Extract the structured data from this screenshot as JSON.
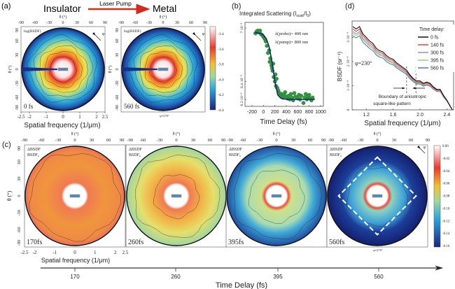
{
  "panel_a": {
    "label": "(a)",
    "insulator": "Insulator",
    "metal": "Metal",
    "pump": "Laser Pump",
    "arrow_color": "#d42a1e",
    "theta_label": "θ (°)",
    "theta_ticks": [
      "-90",
      "-60",
      "-30",
      "0",
      "30",
      "60",
      "90"
    ],
    "theta_ticks_left": [
      "90",
      "60",
      "30",
      "0",
      "-30",
      "-60",
      "-90"
    ],
    "map_label": "log(BSDF)",
    "maps": [
      {
        "time": "0 fs"
      },
      {
        "time": "560 fs"
      }
    ],
    "phi_symbol": "φ",
    "phi_bottom": "φ=270°",
    "freq_ticks": [
      "-2.5",
      "-2",
      "-1",
      "0",
      "1",
      "2",
      "2.5"
    ],
    "xlabel": "Spatial frequency (1/μm)",
    "colorbar_ticks": [
      "-3.4",
      "-3.6",
      "-3.8",
      "-4.0",
      "-4.2",
      "-4.4"
    ]
  },
  "panel_c": {
    "label": "(c)",
    "theta_label": "θ (°)",
    "theta_ticks": [
      "-90",
      "-60",
      "-30",
      "0",
      "30",
      "60",
      "90"
    ],
    "theta_ticks_left": [
      "90",
      "60",
      "30",
      "0",
      "-30",
      "-60",
      "-90"
    ],
    "map_label_num": "ΔBSDF",
    "map_label_den": "BSDF₀",
    "maps": [
      {
        "time": "170fs"
      },
      {
        "time": "260fs"
      },
      {
        "time": "395fs"
      },
      {
        "time": "560fs"
      }
    ],
    "phi_symbol": "φ",
    "phi_bottom": "φ=270°",
    "freq_ticks": [
      "-2.5",
      "-2",
      "-1",
      "0",
      "1",
      "2",
      "2.5"
    ],
    "xlabel": "Spatial frequency (1/μm)",
    "colorbar_ticks": [
      "0.00",
      "-0.02",
      "-0.04",
      "-0.06",
      "-0.08",
      "-0.10",
      "-0.12",
      "-0.14",
      "-0.16"
    ],
    "time_axis_ticks": [
      "170",
      "260",
      "395",
      "560"
    ],
    "time_axis_label": "Time Delay (fs)"
  },
  "chart_data": [
    {
      "id": "b",
      "type": "scatter",
      "panel_label": "(b)",
      "title": "Integrated Scattering (I",
      "title_sub": "scatt",
      "title_mid": "/I",
      "title_sub2": "0",
      "title_end": ")",
      "xlabel": "Time Delay (fs)",
      "xlim": [
        -200,
        1000
      ],
      "ylim": [
        0.00062,
        0.0007
      ],
      "x_ticks": [
        "-200",
        "0",
        "200",
        "400",
        "600",
        "800",
        "1000"
      ],
      "y_ticks": [
        {
          "value": 0.0007,
          "label": "7·10⁻⁴"
        },
        {
          "value": 0.00064,
          "label": "6.4·10⁻⁴"
        },
        {
          "value": 0.00062,
          "label": "6.2·10⁻⁴"
        }
      ],
      "annotations": [
        "λ(probe)= 400 nm",
        "λ(pump)= 800 nm"
      ],
      "point_color": "#2f9a3a",
      "fit_color": "#1a237e",
      "points": {
        "x": [
          -140,
          -120,
          -100,
          -80,
          -60,
          -40,
          -20,
          0,
          20,
          40,
          60,
          80,
          100,
          110,
          120,
          140,
          150,
          160,
          170,
          180,
          200,
          210,
          220,
          230,
          240,
          260,
          280,
          300,
          320,
          340,
          360,
          380,
          400,
          420,
          440,
          460,
          480,
          500,
          520,
          540,
          560,
          600,
          620,
          640,
          660,
          700,
          720,
          740,
          760,
          780,
          800,
          820,
          840,
          860
        ],
        "y": [
          0.000694,
          0.000696,
          0.000697,
          0.000695,
          0.000697,
          0.000693,
          0.000692,
          0.00069,
          0.000688,
          0.000685,
          0.00068,
          0.000672,
          0.000675,
          0.000662,
          0.000666,
          0.000658,
          0.000655,
          0.000652,
          0.00066,
          0.000645,
          0.00064,
          0.000648,
          0.000635,
          0.000643,
          0.000633,
          0.00063,
          0.000627,
          0.000624,
          0.000626,
          0.000622,
          0.000625,
          0.000628,
          0.000623,
          0.000621,
          0.000624,
          0.00062,
          0.000626,
          0.000622,
          0.000619,
          0.000627,
          0.000623,
          0.000621,
          0.000625,
          0.00062,
          0.000624,
          0.000616,
          0.000622,
          0.000626,
          0.00062,
          0.000623,
          0.000625,
          0.000621,
          0.000619,
          0.000622
        ]
      },
      "fit": {
        "x": [
          -150,
          -100,
          -50,
          0,
          50,
          100,
          150,
          200,
          250,
          300,
          350,
          400,
          450,
          500,
          600,
          700,
          800,
          900
        ],
        "y": [
          0.0006948,
          0.0006945,
          0.0006938,
          0.0006921,
          0.000688,
          0.000679,
          0.000662,
          0.00064,
          0.000625,
          0.0006215,
          0.0006205,
          0.0006202,
          0.00062,
          0.00062,
          0.00062,
          0.00062,
          0.00062,
          0.00062
        ]
      }
    },
    {
      "id": "d",
      "type": "line",
      "panel_label": "(d)",
      "xlabel": "Spatial frequency (1/μm)",
      "ylabel": "BSDF (sr⁻¹)",
      "xlim": [
        1.0,
        2.5
      ],
      "ylim": [
        0,
        0.00036
      ],
      "x_ticks": [
        "1.2",
        "1.6",
        "2.0",
        "2.4"
      ],
      "y_ticks": [
        {
          "value": 0,
          "label": "0"
        },
        {
          "value": 0.0001,
          "label": "1·10⁻⁴"
        },
        {
          "value": 0.0002,
          "label": "2·10⁻⁴"
        },
        {
          "value": 0.0003,
          "label": "3·10⁻⁴"
        }
      ],
      "legend_title": "Time delay:",
      "legend_position": "top-right",
      "annotation_phi": "φ=230°",
      "annotation_boundary": [
        "Boundary of anisotropic",
        "square-like pattern"
      ],
      "boundary_x": [
        1.8,
        1.94
      ],
      "x": [
        1.0,
        1.05,
        1.1,
        1.15,
        1.2,
        1.25,
        1.3,
        1.35,
        1.4,
        1.45,
        1.5,
        1.55,
        1.6,
        1.65,
        1.7,
        1.75,
        1.8,
        1.85,
        1.9,
        1.95,
        2.0,
        2.05,
        2.1,
        2.15,
        2.2,
        2.25,
        2.3,
        2.35,
        2.4,
        2.45,
        2.48
      ],
      "series": [
        {
          "name": "0 fs",
          "color": "#000000",
          "values": [
            0.000345,
            0.000335,
            0.000345,
            0.000315,
            0.0003,
            0.000285,
            0.000275,
            0.000255,
            0.000245,
            0.00024,
            0.000225,
            0.000215,
            0.00021,
            0.000195,
            0.000185,
            0.000175,
            0.000165,
            0.000145,
            0.00013,
            0.00012,
            0.00012,
            0.00011,
            0.000115,
            0.00011,
            9.5e-05,
            8.5e-05,
            8.5e-05,
            6e-05,
            4e-05,
            1.5e-05,
            0
          ]
        },
        {
          "name": "140 fs",
          "color": "#e8322a",
          "values": [
            0.000335,
            0.000325,
            0.000335,
            0.000306,
            0.000291,
            0.000276,
            0.000267,
            0.000247,
            0.000238,
            0.000233,
            0.000218,
            0.000209,
            0.000204,
            0.000189,
            0.000179,
            0.00017,
            0.00016,
            0.000141,
            0.000126,
            0.000116,
            0.000116,
            0.000107,
            0.000112,
            0.000107,
            9.2e-05,
            8.2e-05,
            8.2e-05,
            5.8e-05,
            3.9e-05,
            1.5e-05,
            0
          ]
        },
        {
          "name": "300 fs",
          "color": "#9b84b8",
          "values": [
            0.000324,
            0.000315,
            0.000324,
            0.000296,
            0.000282,
            0.000268,
            0.000259,
            0.00024,
            0.00023,
            0.000226,
            0.000212,
            0.000202,
            0.000197,
            0.000183,
            0.000174,
            0.000165,
            0.000155,
            0.000136,
            0.000122,
            0.000113,
            0.000113,
            0.000103,
            0.000108,
            0.000103,
            8.9e-05,
            8e-05,
            8e-05,
            5.6e-05,
            3.8e-05,
            1.4e-05,
            0
          ]
        },
        {
          "name": "395 fs",
          "color": "#8fd06a",
          "values": [
            0.000317,
            0.000308,
            0.000317,
            0.00029,
            0.000276,
            0.000262,
            0.000253,
            0.000235,
            0.000225,
            0.000221,
            0.000207,
            0.000198,
            0.000193,
            0.000179,
            0.00017,
            0.000161,
            0.000152,
            0.000133,
            0.00012,
            0.00011,
            0.00011,
            0.000101,
            0.000106,
            0.000101,
            8.7e-05,
            7.8e-05,
            7.8e-05,
            5.5e-05,
            3.7e-05,
            1.4e-05,
            0
          ]
        },
        {
          "name": "560 fs",
          "color": "#4a6fb5",
          "values": [
            0.000307,
            0.000298,
            0.000307,
            0.00028,
            0.000267,
            0.000254,
            0.000245,
            0.000227,
            0.000218,
            0.000214,
            0.0002,
            0.000191,
            0.000187,
            0.000174,
            0.000165,
            0.000156,
            0.000147,
            0.000129,
            0.000116,
            0.000107,
            0.000107,
            9.8e-05,
            0.000102,
            9.8e-05,
            8.5e-05,
            7.6e-05,
            7.6e-05,
            5.3e-05,
            3.6e-05,
            1.3e-05,
            0
          ]
        }
      ]
    },
    {
      "id": "a",
      "type": "heatmap",
      "description_label": "log(BSDF)",
      "colorbar_range": [
        -4.4,
        -3.4
      ],
      "maps": [
        "0 fs",
        "560 fs"
      ]
    },
    {
      "id": "c",
      "type": "heatmap",
      "description_label": "ΔBSDF/BSDF₀",
      "colorbar_range": [
        -0.16,
        0.0
      ],
      "maps": [
        "170fs",
        "260fs",
        "395fs",
        "560fs"
      ]
    }
  ]
}
